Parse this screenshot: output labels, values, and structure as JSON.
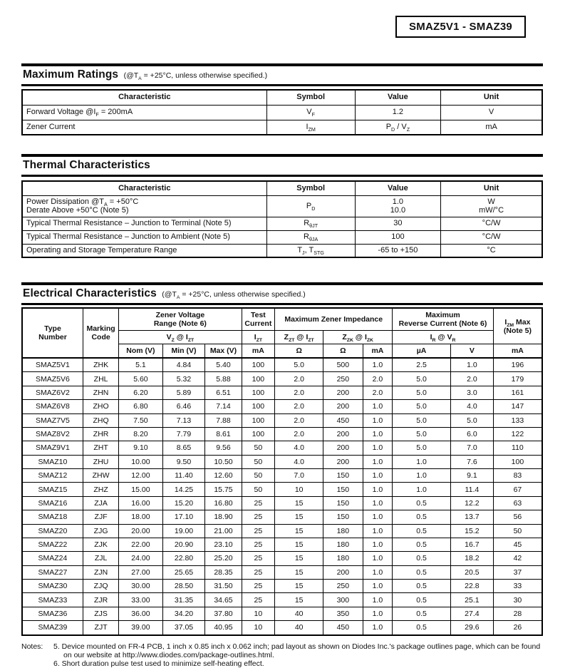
{
  "document": {
    "part_number": "SMAZ5V1 - SMAZ39"
  },
  "maximum_ratings": {
    "title": "Maximum Ratings",
    "condition": "(@T~A~ = +25°C, unless otherwise specified.)",
    "columns": [
      "Characteristic",
      "Symbol",
      "Value",
      "Unit"
    ],
    "rows": [
      [
        "Forward Voltage @I~F~ = 200mA",
        "V~F~",
        "1.2",
        "V"
      ],
      [
        "Zener Current",
        "I~ZM~",
        "P~D~ / V~Z~",
        "mA"
      ]
    ]
  },
  "thermal_characteristics": {
    "title": "Thermal Characteristics",
    "columns": [
      "Characteristic",
      "Symbol",
      "Value",
      "Unit"
    ],
    "rows": [
      [
        "Power Dissipation @T~A~ = +50°C\nDerate Above +50°C (Note 5)",
        "P~D~",
        "1.0\n10.0",
        "W\nmW/°C"
      ],
      [
        "Typical Thermal Resistance – Junction to Terminal (Note 5)",
        "R~θJT~",
        "30",
        "°C/W"
      ],
      [
        "Typical Thermal Resistance – Junction to Ambient (Note 5)",
        "R~θJA~",
        "100",
        "°C/W"
      ],
      [
        "Operating and Storage Temperature Range",
        "T~J~, T~STG~",
        "-65 to +150",
        "°C"
      ]
    ]
  },
  "electrical_characteristics": {
    "title": "Electrical Characteristics",
    "condition": "(@T~A~ = +25°C, unless otherwise specified.)",
    "header": {
      "type_number": "Type\nNumber",
      "marking_code": "Marking\nCode",
      "zener_voltage_range": "Zener Voltage\nRange (Note 6)",
      "vz_at_izt": "V~Z~ @ I~ZT~",
      "nom_v": "Nom (V)",
      "min_v": "Min (V)",
      "max_v": "Max (V)",
      "test_current": "Test\nCurrent",
      "izt": "I~ZT~",
      "izt_unit": "mA",
      "maximum_zener_impedance": "Maximum Zener Impedance",
      "zzt_at_izt": "Z~ZT~ @ I~ZT~",
      "zzt_unit": "Ω",
      "zzk_at_izk": "Z~ZK~ @ I~ZK~",
      "zzk_unit": "Ω",
      "izk_unit": "mA",
      "maximum_reverse_current": "Maximum\nReverse Current (Note 6)",
      "ir_at_vr": "I~R~ @ V~R~",
      "ir_unit": "µA",
      "vr_unit": "V",
      "izm_max": "I~ZM~ Max\n(Note 5)",
      "izm_unit": "mA"
    },
    "rows": [
      [
        "SMAZ5V1",
        "ZHK",
        "5.1",
        "4.84",
        "5.40",
        "100",
        "5.0",
        "500",
        "1.0",
        "2.5",
        "1.0",
        "196"
      ],
      [
        "SMAZ5V6",
        "ZHL",
        "5.60",
        "5.32",
        "5.88",
        "100",
        "2.0",
        "250",
        "2.0",
        "5.0",
        "2.0",
        "179"
      ],
      [
        "SMAZ6V2",
        "ZHN",
        "6.20",
        "5.89",
        "6.51",
        "100",
        "2.0",
        "200",
        "2.0",
        "5.0",
        "3.0",
        "161"
      ],
      [
        "SMAZ6V8",
        "ZHO",
        "6.80",
        "6.46",
        "7.14",
        "100",
        "2.0",
        "200",
        "1.0",
        "5.0",
        "4.0",
        "147"
      ],
      [
        "SMAZ7V5",
        "ZHQ",
        "7.50",
        "7.13",
        "7.88",
        "100",
        "2.0",
        "450",
        "1.0",
        "5.0",
        "5.0",
        "133"
      ],
      [
        "SMAZ8V2",
        "ZHR",
        "8.20",
        "7.79",
        "8.61",
        "100",
        "2.0",
        "200",
        "1.0",
        "5.0",
        "6.0",
        "122"
      ],
      [
        "SMAZ9V1",
        "ZHT",
        "9.10",
        "8.65",
        "9.56",
        "50",
        "4.0",
        "200",
        "1.0",
        "5.0",
        "7.0",
        "110"
      ],
      [
        "SMAZ10",
        "ZHU",
        "10.00",
        "9.50",
        "10.50",
        "50",
        "4.0",
        "200",
        "1.0",
        "1.0",
        "7.6",
        "100"
      ],
      [
        "SMAZ12",
        "ZHW",
        "12.00",
        "11.40",
        "12.60",
        "50",
        "7.0",
        "150",
        "1.0",
        "1.0",
        "9.1",
        "83"
      ],
      [
        "SMAZ15",
        "ZHZ",
        "15.00",
        "14.25",
        "15.75",
        "50",
        "10",
        "150",
        "1.0",
        "1.0",
        "11.4",
        "67"
      ],
      [
        "SMAZ16",
        "ZJA",
        "16.00",
        "15.20",
        "16.80",
        "25",
        "15",
        "150",
        "1.0",
        "0.5",
        "12.2",
        "63"
      ],
      [
        "SMAZ18",
        "ZJF",
        "18.00",
        "17.10",
        "18.90",
        "25",
        "15",
        "150",
        "1.0",
        "0.5",
        "13.7",
        "56"
      ],
      [
        "SMAZ20",
        "ZJG",
        "20.00",
        "19.00",
        "21.00",
        "25",
        "15",
        "180",
        "1.0",
        "0.5",
        "15.2",
        "50"
      ],
      [
        "SMAZ22",
        "ZJK",
        "22.00",
        "20.90",
        "23.10",
        "25",
        "15",
        "180",
        "1.0",
        "0.5",
        "16.7",
        "45"
      ],
      [
        "SMAZ24",
        "ZJL",
        "24.00",
        "22.80",
        "25.20",
        "25",
        "15",
        "180",
        "1.0",
        "0.5",
        "18.2",
        "42"
      ],
      [
        "SMAZ27",
        "ZJN",
        "27.00",
        "25.65",
        "28.35",
        "25",
        "15",
        "200",
        "1.0",
        "0.5",
        "20.5",
        "37"
      ],
      [
        "SMAZ30",
        "ZJQ",
        "30.00",
        "28.50",
        "31.50",
        "25",
        "15",
        "250",
        "1.0",
        "0.5",
        "22.8",
        "33"
      ],
      [
        "SMAZ33",
        "ZJR",
        "33.00",
        "31.35",
        "34.65",
        "25",
        "15",
        "300",
        "1.0",
        "0.5",
        "25.1",
        "30"
      ],
      [
        "SMAZ36",
        "ZJS",
        "36.00",
        "34.20",
        "37.80",
        "10",
        "40",
        "350",
        "1.0",
        "0.5",
        "27.4",
        "28"
      ],
      [
        "SMAZ39",
        "ZJT",
        "39.00",
        "37.05",
        "40.95",
        "10",
        "40",
        "450",
        "1.0",
        "0.5",
        "29.6",
        "26"
      ]
    ]
  },
  "notes": {
    "label": "Notes:",
    "items": [
      "5. Device mounted on FR-4 PCB, 1 inch x 0.85 inch x 0.062 inch; pad layout as shown on Diodes Inc.'s package outlines page, which can be found on our website at http://www.diodes.com/package-outlines.html.",
      "6. Short duration pulse test used to minimize self-heating effect."
    ]
  }
}
